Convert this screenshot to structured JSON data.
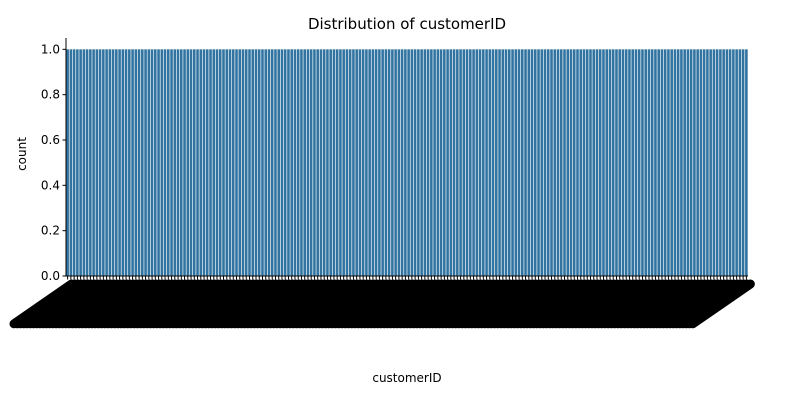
{
  "chart_data": {
    "type": "bar",
    "title": "Distribution of customerID",
    "xlabel": "customerID",
    "ylabel": "count",
    "ylim": [
      0,
      1.05
    ],
    "y_ticks": [
      "0.0",
      "0.2",
      "0.4",
      "0.6",
      "0.8",
      "1.0"
    ],
    "y_tick_values": [
      0,
      0.2,
      0.4,
      0.6,
      0.8,
      1.0
    ],
    "category_count": 210,
    "bar_value": 1,
    "grid": false,
    "legend": "none",
    "colors": {
      "bar": "#3274a1",
      "axis": "#000000"
    }
  }
}
